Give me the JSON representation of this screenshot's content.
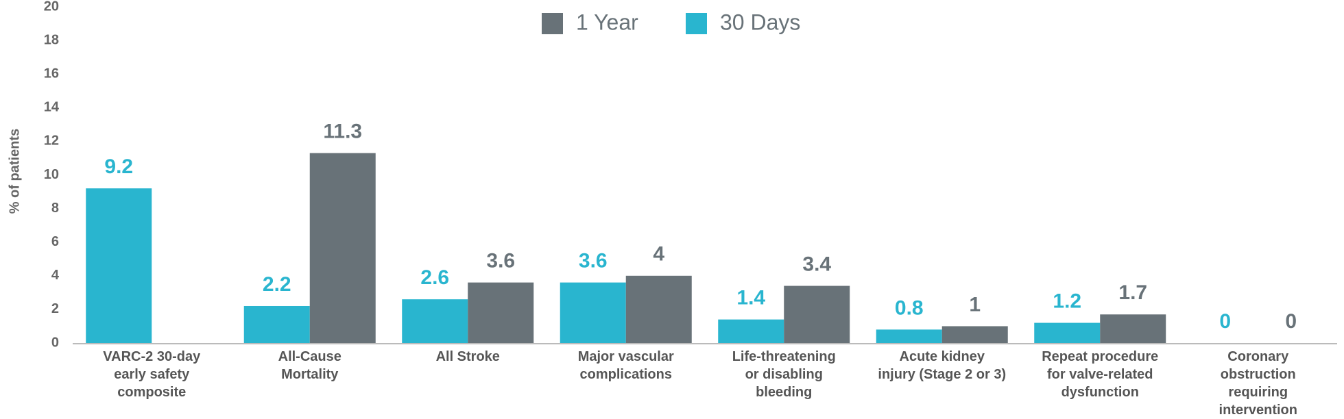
{
  "chart_data": {
    "type": "bar",
    "y_label": "% of patients",
    "categories": [
      [
        "VARC-2 30-day",
        "early safety",
        "composite"
      ],
      [
        "All-Cause",
        "Mortality"
      ],
      [
        "All Stroke"
      ],
      [
        "Major vascular",
        "complications"
      ],
      [
        "Life-threatening",
        "or disabling",
        "bleeding"
      ],
      [
        "Acute kidney",
        "injury (Stage 2 or 3)"
      ],
      [
        "Repeat procedure",
        "for valve-related",
        "dysfunction"
      ],
      [
        "Coronary",
        "obstruction",
        "requiring",
        "intervention"
      ]
    ],
    "series": [
      {
        "name": "1 Year",
        "color": "#687278",
        "values": [
          null,
          11.3,
          3.6,
          4,
          3.4,
          1,
          1.7,
          0
        ]
      },
      {
        "name": "30 Days",
        "color": "#29b5cf",
        "values": [
          9.2,
          2.2,
          2.6,
          3.6,
          1.4,
          0.8,
          1.2,
          0
        ]
      }
    ],
    "ylim": [
      0,
      20
    ],
    "yticks": [
      0,
      2,
      4,
      6,
      8,
      10,
      12,
      14,
      16,
      18,
      20
    ],
    "grid": false
  }
}
